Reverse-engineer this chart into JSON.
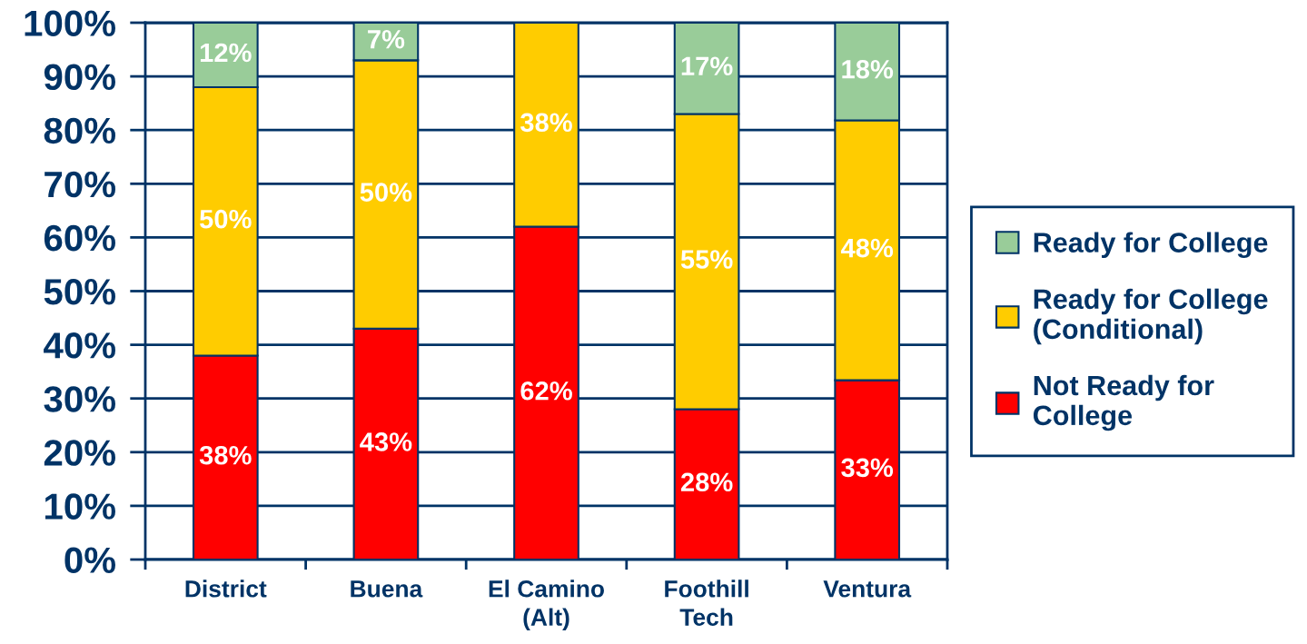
{
  "chart_data": {
    "type": "bar",
    "stacked": true,
    "categories": [
      "District",
      "Buena",
      "El Camino\n(Alt)",
      "Foothill\nTech",
      "Ventura"
    ],
    "series": [
      {
        "name": "Not Ready for\nCollege",
        "color": "#ff0000",
        "values": [
          38,
          43,
          62,
          28,
          33.4
        ],
        "value_labels": [
          "38%",
          "43%",
          "62%",
          "28%",
          "33%"
        ]
      },
      {
        "name": "Ready for College\n(Conditional)",
        "color": "#ffcc00",
        "values": [
          50,
          50,
          38,
          55,
          48.4
        ],
        "value_labels": [
          "50%",
          "50%",
          "38%",
          "55%",
          "48%"
        ]
      },
      {
        "name": "Ready for College",
        "color": "#99cc99",
        "values": [
          12,
          7,
          null,
          17,
          18.2
        ],
        "value_labels": [
          "12%",
          "7%",
          null,
          "17%",
          "18%"
        ]
      }
    ],
    "ylim": [
      0,
      100
    ],
    "yticks": [
      {
        "value": 0,
        "label": "0%"
      },
      {
        "value": 10,
        "label": "10%"
      },
      {
        "value": 20,
        "label": "20%"
      },
      {
        "value": 30,
        "label": "30%"
      },
      {
        "value": 40,
        "label": "40%"
      },
      {
        "value": 50,
        "label": "50%"
      },
      {
        "value": 60,
        "label": "60%"
      },
      {
        "value": 70,
        "label": "70%"
      },
      {
        "value": 80,
        "label": "80%"
      },
      {
        "value": 90,
        "label": "90%"
      },
      {
        "value": 100,
        "label": "100%"
      }
    ],
    "grid": "y",
    "legend": "right"
  }
}
